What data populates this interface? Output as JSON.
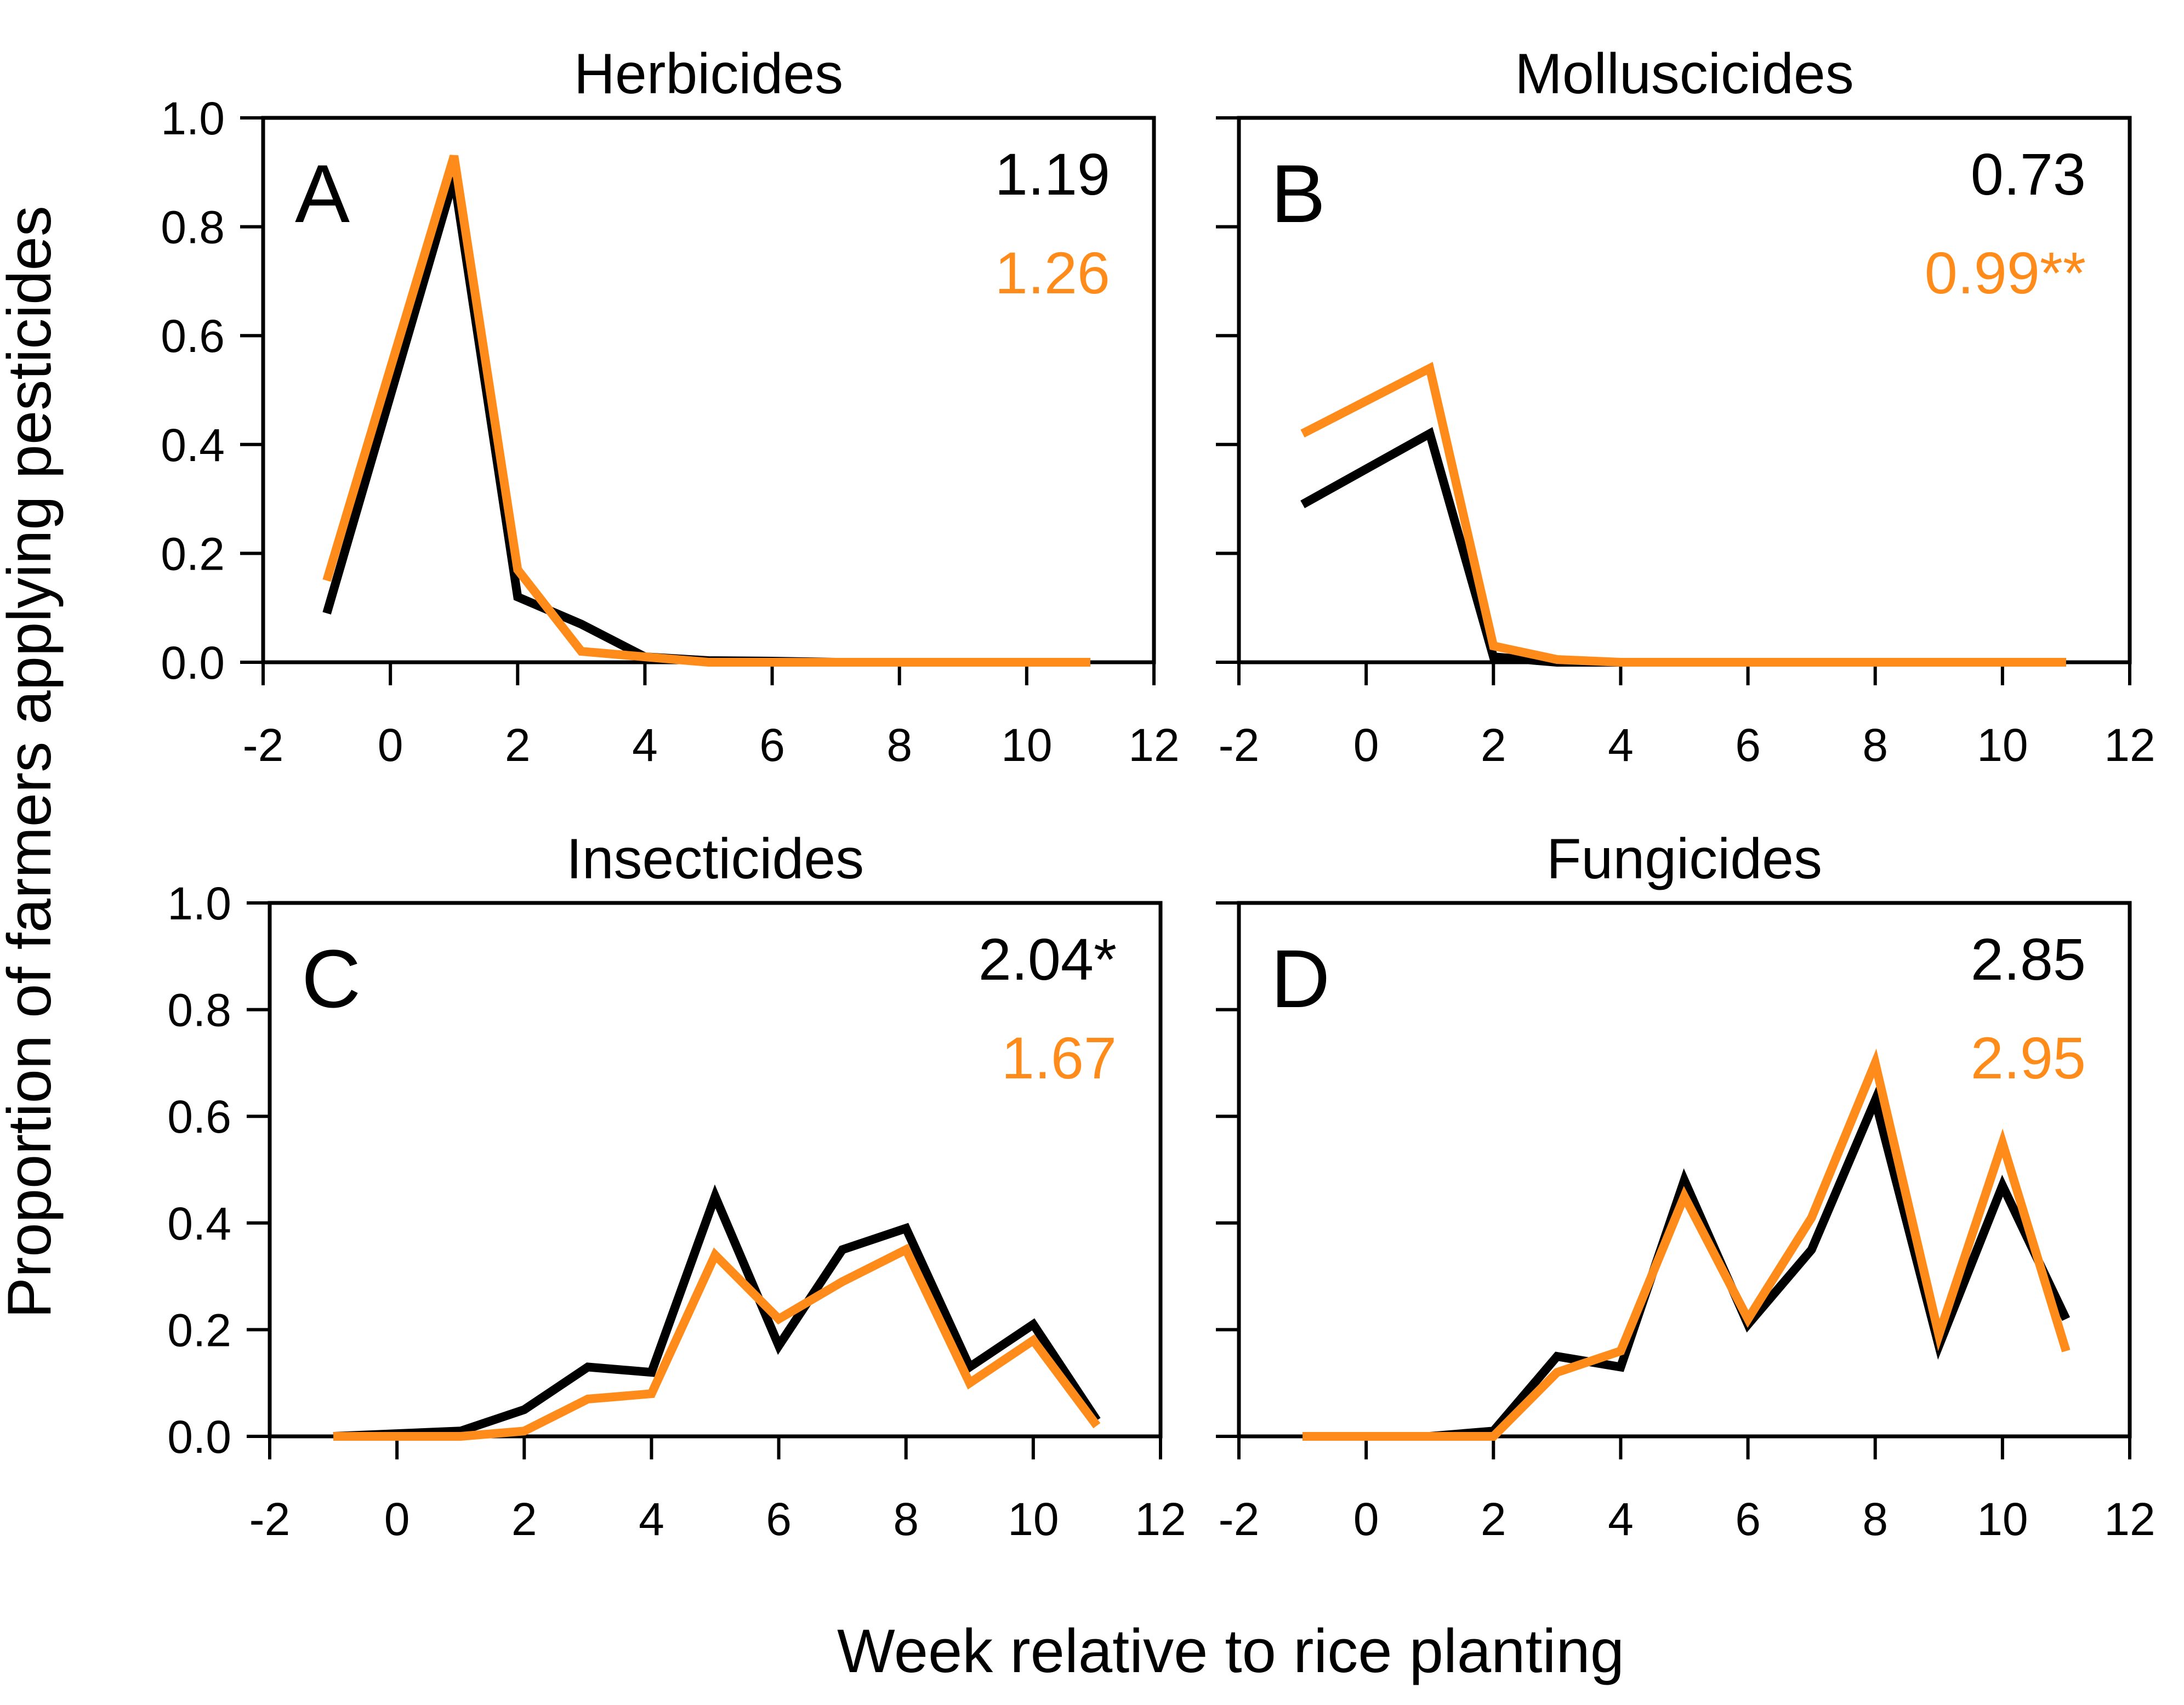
{
  "colors": {
    "black": "#000000",
    "orange": "#ff8c1a"
  },
  "ylabel": "Proportion of farmers applying pesticides",
  "xlabel": "Week relative to rice planting",
  "chart_data": [
    {
      "type": "line",
      "panel": "A",
      "title": "Herbicides",
      "xlim": [
        -2,
        12
      ],
      "ylim": [
        0,
        1.0
      ],
      "xticks": [
        "-2",
        "0",
        "2",
        "4",
        "6",
        "8",
        "10",
        "12"
      ],
      "yticks": [
        "0.0",
        "0.2",
        "0.4",
        "0.6",
        "0.8",
        "1.0"
      ],
      "annotations": [
        {
          "text": "1.19",
          "color": "#000000"
        },
        {
          "text": "1.26",
          "color": "#ff8c1a"
        }
      ],
      "series": [
        {
          "name": "black",
          "color": "#000000",
          "x": [
            -1,
            1,
            2,
            3,
            4,
            5,
            6,
            7,
            8,
            9,
            10,
            11
          ],
          "values": [
            0.09,
            0.89,
            0.12,
            0.07,
            0.01,
            0.003,
            0.002,
            0.0,
            0.0,
            0.0,
            0.0,
            0.0
          ]
        },
        {
          "name": "orange",
          "color": "#ff8c1a",
          "x": [
            -1,
            1,
            2,
            3,
            4,
            5,
            6,
            7,
            8,
            9,
            10,
            11
          ],
          "values": [
            0.15,
            0.93,
            0.17,
            0.02,
            0.01,
            0.0,
            0.0,
            0.0,
            0.0,
            0.0,
            0.0,
            0.0
          ]
        }
      ]
    },
    {
      "type": "line",
      "panel": "B",
      "title": "Molluscicides",
      "xlim": [
        -2,
        12
      ],
      "ylim": [
        0,
        1.0
      ],
      "xticks": [
        "-2",
        "0",
        "2",
        "4",
        "6",
        "8",
        "10",
        "12"
      ],
      "yticks": [],
      "annotations": [
        {
          "text": "0.73",
          "color": "#000000"
        },
        {
          "text": "0.99**",
          "color": "#ff8c1a"
        }
      ],
      "series": [
        {
          "name": "black",
          "color": "#000000",
          "x": [
            -1,
            1,
            2,
            3,
            4,
            5,
            6,
            7,
            8,
            9,
            10,
            11
          ],
          "values": [
            0.29,
            0.42,
            0.01,
            0.0,
            0.0,
            0.0,
            0.0,
            0.0,
            0.0,
            0.0,
            0.0,
            0.0
          ]
        },
        {
          "name": "orange",
          "color": "#ff8c1a",
          "x": [
            -1,
            1,
            2,
            3,
            4,
            5,
            6,
            7,
            8,
            9,
            10,
            11
          ],
          "values": [
            0.42,
            0.54,
            0.03,
            0.005,
            0.0,
            0.0,
            0.0,
            0.0,
            0.0,
            0.0,
            0.0,
            0.0
          ]
        }
      ]
    },
    {
      "type": "line",
      "panel": "C",
      "title": "Insecticides",
      "xlim": [
        -2,
        12
      ],
      "ylim": [
        0,
        1.0
      ],
      "xticks": [
        "-2",
        "0",
        "2",
        "4",
        "6",
        "8",
        "10",
        "12"
      ],
      "yticks": [
        "0.0",
        "0.2",
        "0.4",
        "0.6",
        "0.8",
        "1.0"
      ],
      "annotations": [
        {
          "text": "2.04*",
          "color": "#000000"
        },
        {
          "text": "1.67",
          "color": "#ff8c1a"
        }
      ],
      "series": [
        {
          "name": "black",
          "color": "#000000",
          "x": [
            -1,
            0,
            1,
            2,
            3,
            4,
            5,
            6,
            7,
            8,
            9,
            10,
            11
          ],
          "values": [
            0.0,
            0.005,
            0.01,
            0.05,
            0.13,
            0.12,
            0.45,
            0.17,
            0.35,
            0.39,
            0.13,
            0.21,
            0.03
          ]
        },
        {
          "name": "orange",
          "color": "#ff8c1a",
          "x": [
            -1,
            0,
            1,
            2,
            3,
            4,
            5,
            6,
            7,
            8,
            9,
            10,
            11
          ],
          "values": [
            0.0,
            0.0,
            0.0,
            0.01,
            0.07,
            0.08,
            0.34,
            0.22,
            0.29,
            0.35,
            0.1,
            0.18,
            0.02
          ]
        }
      ]
    },
    {
      "type": "line",
      "panel": "D",
      "title": "Fungicides",
      "xlim": [
        -2,
        12
      ],
      "ylim": [
        0,
        1.0
      ],
      "xticks": [
        "-2",
        "0",
        "2",
        "4",
        "6",
        "8",
        "10",
        "12"
      ],
      "yticks": [],
      "annotations": [
        {
          "text": "2.85",
          "color": "#000000"
        },
        {
          "text": "2.95",
          "color": "#ff8c1a"
        }
      ],
      "series": [
        {
          "name": "black",
          "color": "#000000",
          "x": [
            -1,
            0,
            1,
            2,
            3,
            4,
            5,
            6,
            7,
            8,
            9,
            10,
            11
          ],
          "values": [
            0.0,
            0.0,
            0.0,
            0.01,
            0.15,
            0.13,
            0.48,
            0.21,
            0.35,
            0.63,
            0.17,
            0.47,
            0.22
          ]
        },
        {
          "name": "orange",
          "color": "#ff8c1a",
          "x": [
            -1,
            0,
            1,
            2,
            3,
            4,
            5,
            6,
            7,
            8,
            9,
            10,
            11
          ],
          "values": [
            0.0,
            0.0,
            0.0,
            0.0,
            0.12,
            0.16,
            0.45,
            0.22,
            0.41,
            0.7,
            0.19,
            0.55,
            0.16
          ]
        }
      ]
    }
  ]
}
